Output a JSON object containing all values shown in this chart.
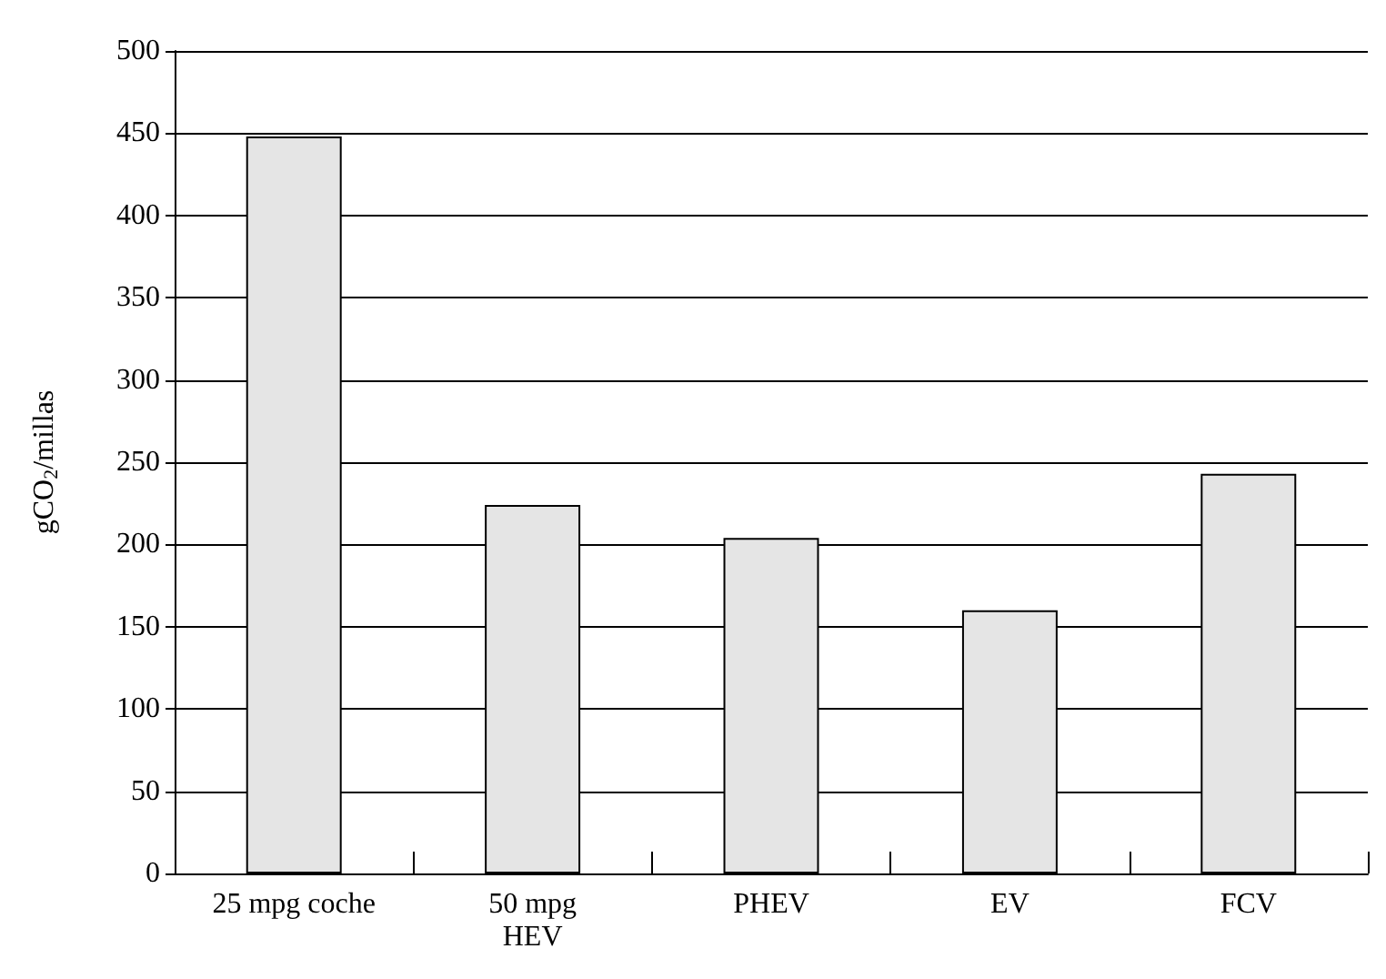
{
  "chart_data": {
    "type": "bar",
    "ylabel": "gCO$_{2}$/millas",
    "categories": [
      "25 mpg coche",
      "50 mpg\nHEV",
      "PHEV",
      "EV",
      "FCV"
    ],
    "values": [
      448,
      224,
      204,
      160,
      243
    ],
    "color": "#e5e5e5",
    "ylim": [
      0,
      500
    ],
    "yticks": [
      0,
      50,
      100,
      150,
      200,
      250,
      300,
      350,
      400,
      450,
      500
    ],
    "grid": "y"
  }
}
